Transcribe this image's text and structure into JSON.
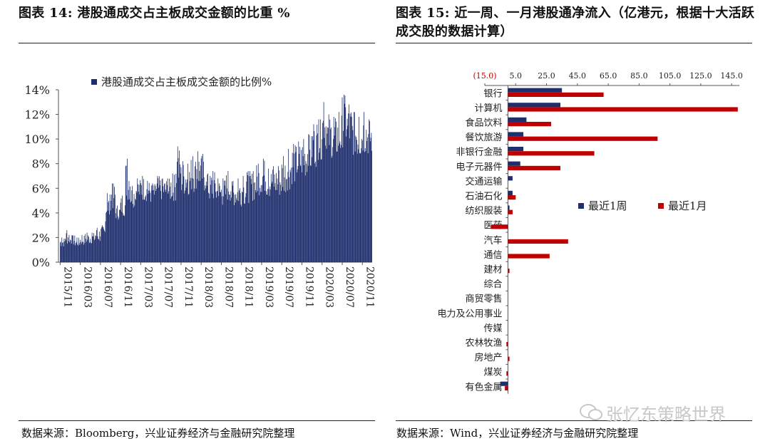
{
  "left": {
    "title": "图表 14:  港股通成交占主板成交金额的比重  %",
    "source": "数据来源：Bloomberg，兴业证券经济与金融研究院整理",
    "chart_data": {
      "type": "bar",
      "title": "",
      "legend": "港股通成交占主板成交金额的比例%",
      "legend_position": "top",
      "ylim": [
        0,
        14
      ],
      "yticks": [
        "0%",
        "2%",
        "4%",
        "6%",
        "8%",
        "10%",
        "12%",
        "14%"
      ],
      "xticks": [
        "2015/11",
        "2016/03",
        "2016/07",
        "2016/11",
        "2017/03",
        "2017/07",
        "2017/11",
        "2018/03",
        "2018/07",
        "2018/11",
        "2019/03",
        "2019/07",
        "2019/11",
        "2020/03",
        "2020/07",
        "2020/11"
      ],
      "color": "#1f2f6e",
      "monthly_range": {
        "months": [
          "2015/11",
          "2015/12",
          "2016/01",
          "2016/02",
          "2016/03",
          "2016/04",
          "2016/05",
          "2016/06",
          "2016/07",
          "2016/08",
          "2016/09",
          "2016/10",
          "2016/11",
          "2016/12",
          "2017/01",
          "2017/02",
          "2017/03",
          "2017/04",
          "2017/05",
          "2017/06",
          "2017/07",
          "2017/08",
          "2017/09",
          "2017/10",
          "2017/11",
          "2017/12",
          "2018/01",
          "2018/02",
          "2018/03",
          "2018/04",
          "2018/05",
          "2018/06",
          "2018/07",
          "2018/08",
          "2018/09",
          "2018/10",
          "2018/11",
          "2018/12",
          "2019/01",
          "2019/02",
          "2019/03",
          "2019/04",
          "2019/05",
          "2019/06",
          "2019/07",
          "2019/08",
          "2019/09",
          "2019/10",
          "2019/11",
          "2019/12",
          "2020/01",
          "2020/02",
          "2020/03",
          "2020/04",
          "2020/05",
          "2020/06",
          "2020/07",
          "2020/08",
          "2020/09",
          "2020/10",
          "2020/11",
          "2020/12"
        ],
        "low": [
          0.8,
          0.8,
          0.9,
          0.8,
          0.9,
          0.9,
          1.0,
          0.9,
          1.1,
          2.0,
          3.0,
          2.8,
          2.8,
          3.0,
          3.5,
          3.8,
          3.8,
          4.0,
          3.8,
          3.8,
          4.0,
          3.8,
          3.7,
          3.8,
          3.8,
          4.0,
          4.0,
          4.2,
          3.8,
          3.5,
          3.5,
          3.2,
          3.2,
          3.5,
          3.4,
          3.2,
          3.2,
          3.4,
          3.6,
          4.0,
          4.0,
          3.8,
          3.8,
          3.8,
          3.8,
          4.0,
          4.5,
          4.8,
          5.0,
          5.2,
          5.8,
          6.5,
          7.0,
          6.5,
          6.2,
          6.2,
          7.0,
          6.8,
          6.6,
          6.4,
          6.8,
          7.0
        ],
        "high": [
          2.0,
          2.6,
          2.2,
          2.0,
          2.2,
          2.4,
          2.4,
          2.8,
          3.0,
          5.6,
          6.4,
          4.6,
          5.4,
          8.4,
          6.2,
          6.8,
          7.0,
          6.6,
          6.4,
          7.0,
          6.8,
          6.8,
          7.2,
          9.4,
          8.2,
          8.0,
          8.6,
          9.0,
          8.8,
          7.2,
          7.4,
          6.8,
          6.8,
          7.4,
          6.6,
          6.8,
          7.0,
          7.4,
          7.4,
          8.0,
          8.4,
          7.6,
          7.8,
          7.8,
          8.6,
          9.2,
          9.6,
          9.8,
          10.0,
          10.4,
          11.2,
          11.6,
          13.0,
          12.0,
          11.8,
          12.2,
          13.6,
          12.8,
          12.2,
          11.8,
          12.2,
          11.6
        ]
      }
    }
  },
  "right": {
    "title": "图表 15:  近一周、一月港股通净流入（亿港元，根据十大活跃成交股的数据计算）",
    "source": "数据来源：Wind，兴业证券经济与金融研究院整理",
    "chart_data": {
      "type": "bar",
      "orientation": "horizontal",
      "title": "",
      "xlim": [
        -15,
        150
      ],
      "xticks": [
        "(15.0)",
        "5.0",
        "25.0",
        "45.0",
        "65.0",
        "85.0",
        "105.0",
        "125.0",
        "145.0"
      ],
      "xtick_values": [
        -15,
        5,
        25,
        45,
        65,
        85,
        105,
        125,
        145
      ],
      "legend_position": "right-middle",
      "categories": [
        "银行",
        "计算机",
        "食品饮料",
        "餐饮旅游",
        "非银行金融",
        "电子元器件",
        "交通运输",
        "石油石化",
        "纺织服装",
        "医药",
        "汽车",
        "通信",
        "建材",
        "综合",
        "商贸零售",
        "电力及公用事业",
        "传媒",
        "农林牧渔",
        "房地产",
        "煤炭",
        "有色金属"
      ],
      "series": [
        {
          "name": "最近1周",
          "color": "#1f2f6e",
          "values": [
            35,
            34,
            12,
            10,
            10,
            8,
            3,
            3,
            1,
            0,
            0,
            0,
            0,
            0,
            0,
            0,
            0,
            0,
            0,
            0,
            -5
          ]
        },
        {
          "name": "最近1月",
          "color": "#c00000",
          "values": [
            62,
            149,
            28,
            97,
            56,
            34,
            0,
            5,
            3,
            -11,
            39,
            27,
            1,
            0,
            0,
            0,
            0,
            -1,
            1,
            -1,
            -2
          ]
        }
      ]
    }
  },
  "watermark": "张忆东策略世界"
}
